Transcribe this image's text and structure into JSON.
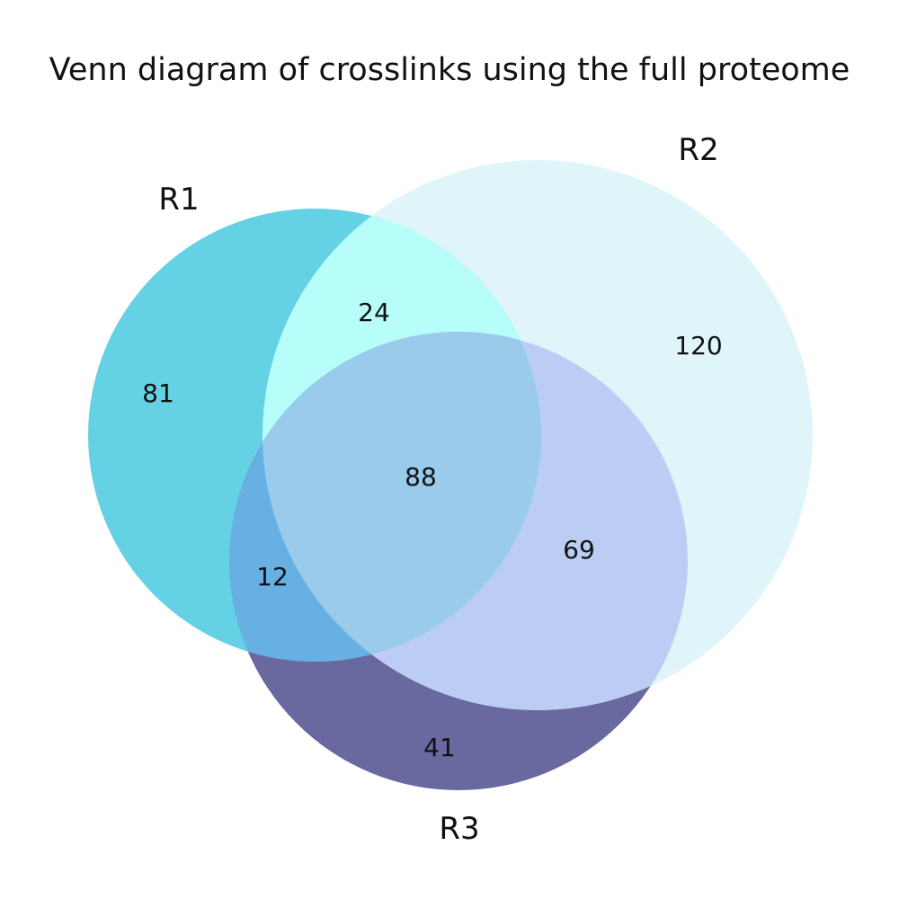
{
  "title": "Venn diagram of crosslinks using the full proteome",
  "sets": [
    {
      "id": "R1",
      "label": "R1",
      "color": "#65d1e5"
    },
    {
      "id": "R2",
      "label": "R2",
      "color": "#dff5f9"
    },
    {
      "id": "R3",
      "label": "R3",
      "color": "#6a699f"
    }
  ],
  "region_colors": {
    "r1_r2": "#b7fefa",
    "r1_r3": "#66b0e4",
    "r2_r3": "#bccdf5",
    "r1_r2_r3": "#9acbeb"
  },
  "regions": {
    "r1_only": "81",
    "r2_only": "120",
    "r3_only": "41",
    "r1_r2": "24",
    "r1_r3": "12",
    "r2_r3": "69",
    "r1_r2_r3": "88"
  }
}
